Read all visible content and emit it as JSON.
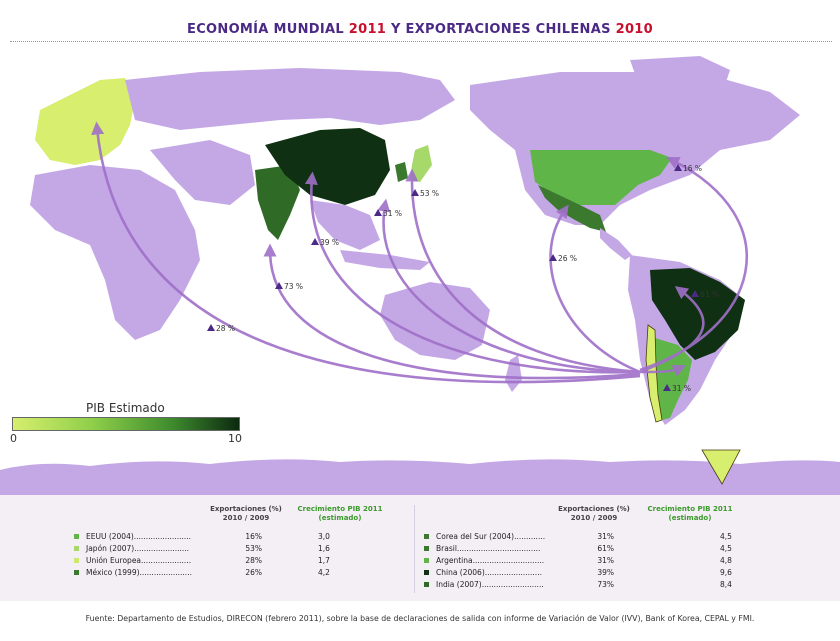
{
  "title": {
    "part1": "ECONOMÍA MUNDIAL",
    "year1": "2011",
    "part2": " Y  EXPORTACIONES CHILENAS",
    "year2": "2010"
  },
  "legend": {
    "title": "PIB Estimado",
    "min": "0",
    "max": "10",
    "colors": [
      "#d7ee6e",
      "#0c2a0f"
    ]
  },
  "map_labels": [
    {
      "id": "usa",
      "text": "16 %"
    },
    {
      "id": "japon",
      "text": "53 %"
    },
    {
      "id": "corea",
      "text": "31 %"
    },
    {
      "id": "china",
      "text": "39 %"
    },
    {
      "id": "india",
      "text": "73 %"
    },
    {
      "id": "ue",
      "text": "28 %"
    },
    {
      "id": "mexico",
      "text": "26 %"
    },
    {
      "id": "brasil",
      "text": "61 %"
    },
    {
      "id": "argentina",
      "text": "31 %"
    }
  ],
  "table": {
    "header_exports": "Exportaciones (%)",
    "header_exports_period": "2010 / 2009",
    "header_growth": "Crecimiento PIB 2011",
    "header_growth_note": "(estimado)",
    "left": [
      {
        "name": "EEUU (2004)........................",
        "exports": "16%",
        "growth": "3,0",
        "color": "#5fb548"
      },
      {
        "name": "Japón (2007).......................",
        "exports": "53%",
        "growth": "1,6",
        "color": "#a7d86a"
      },
      {
        "name": "Unión Europea.....................",
        "exports": "28%",
        "growth": "1,7",
        "color": "#cde96e"
      },
      {
        "name": "México (1999)......................",
        "exports": "26%",
        "growth": "4,2",
        "color": "#3b7a2e"
      }
    ],
    "right": [
      {
        "name": "Corea del Sur (2004).............",
        "exports": "31%",
        "growth": "4,5",
        "color": "#3b7a2e"
      },
      {
        "name": "Brasil...................................",
        "exports": "61%",
        "growth": "4,5",
        "color": "#3b7a2e"
      },
      {
        "name": "Argentina..............................",
        "exports": "31%",
        "growth": "4,8",
        "color": "#5fb548"
      },
      {
        "name": "China (2006)........................",
        "exports": "39%",
        "growth": "9,6",
        "color": "#0f3012"
      },
      {
        "name": "India (2007)..........................",
        "exports": "73%",
        "growth": "8,4",
        "color": "#2f6a26"
      }
    ]
  },
  "source": "Fuente: Departamento de Estudios, DIRECON (febrero 2011), sobre la base de declaraciones de salida con informe de Variación de Valor (IVV), Bank of Korea, CEPAL y FMI."
}
